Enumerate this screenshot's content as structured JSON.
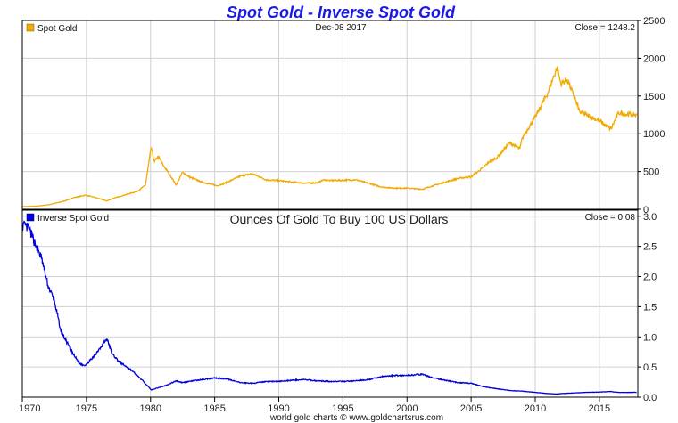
{
  "title": "Spot Gold - Inverse Spot Gold",
  "colors": {
    "title": "#1a1ae6",
    "gold": "#f2a900",
    "inverse": "#0000dd",
    "grid": "#d0d0d0",
    "frame": "#000000"
  },
  "x_ticks": [
    "1970",
    "1975",
    "1980",
    "1985",
    "1990",
    "1995",
    "2000",
    "2005",
    "2010",
    "2015"
  ],
  "footer": "world gold charts © www.goldchartsrus.com",
  "panels": {
    "top": {
      "legend": "Spot Gold",
      "date": "Dec-08  2017",
      "close": "Close = 1248.2",
      "y_ticks": [
        "0",
        "500",
        "1000",
        "1500",
        "2000",
        "2500"
      ]
    },
    "bottom": {
      "legend": "Inverse Spot Gold",
      "subtitle": "Ounces Of Gold To Buy 100 US Dollars",
      "close": "Close = 0.08",
      "y_ticks": [
        "0.0",
        "0.5",
        "1.0",
        "1.5",
        "2.0",
        "2.5",
        "3.0"
      ]
    }
  },
  "chart_data": [
    {
      "type": "line",
      "legend": "Spot Gold",
      "xlim": [
        1970,
        2018
      ],
      "ylim": [
        0,
        2500
      ],
      "grid": true,
      "legend_placement": "top-left",
      "series": [
        {
          "name": "Spot Gold",
          "x": [
            1970,
            1971,
            1972,
            1973,
            1973.5,
            1974,
            1974.9,
            1975.5,
            1976.6,
            1977,
            1978,
            1979,
            1979.6,
            1980.05,
            1980.3,
            1980.6,
            1981,
            1981.5,
            1982,
            1982.5,
            1983,
            1984,
            1985.2,
            1986,
            1987,
            1987.9,
            1988.5,
            1989,
            1990,
            1991,
            1992,
            1993,
            1993.5,
            1994,
            1995,
            1996,
            1997,
            1998,
            1999,
            2000,
            2001.2,
            2002,
            2003,
            2004,
            2005,
            2006,
            2006.4,
            2007,
            2008,
            2008.8,
            2009,
            2010,
            2011,
            2011.7,
            2012,
            2012.5,
            2013,
            2013.5,
            2014,
            2015,
            2015.9,
            2016.5,
            2017,
            2017.9
          ],
          "values": [
            36,
            40,
            58,
            97,
            120,
            154,
            186,
            165,
            110,
            140,
            190,
            240,
            320,
            820,
            630,
            700,
            580,
            460,
            320,
            490,
            430,
            360,
            310,
            360,
            440,
            470,
            430,
            390,
            380,
            360,
            345,
            350,
            390,
            380,
            385,
            390,
            345,
            295,
            280,
            280,
            265,
            310,
            360,
            410,
            430,
            560,
            630,
            680,
            880,
            800,
            950,
            1220,
            1550,
            1880,
            1660,
            1720,
            1500,
            1280,
            1250,
            1170,
            1060,
            1280,
            1260,
            1248
          ]
        }
      ]
    },
    {
      "type": "line",
      "legend": "Inverse Spot Gold",
      "subtitle": "Ounces Of Gold To Buy 100 US Dollars",
      "xlim": [
        1970,
        2018
      ],
      "ylim": [
        0,
        3.1
      ],
      "grid": true,
      "legend_placement": "top-left",
      "series": [
        {
          "name": "Inverse Spot Gold",
          "x": [
            1970,
            1970.5,
            1971,
            1971.5,
            1972,
            1972.5,
            1973,
            1973.5,
            1974,
            1974.5,
            1974.9,
            1975.5,
            1976,
            1976.6,
            1977,
            1977.5,
            1978,
            1978.5,
            1979,
            1979.5,
            1980.05,
            1980.5,
            1981,
            1981.5,
            1982,
            1982.5,
            1983,
            1984,
            1985,
            1986,
            1987,
            1988,
            1989,
            1990,
            1991,
            1992,
            1993,
            1994,
            1995,
            1996,
            1997,
            1998,
            1999,
            2000,
            2001.2,
            2002,
            2003,
            2004,
            2005,
            2006,
            2007,
            2008,
            2009,
            2010,
            2011,
            2011.7,
            2012,
            2013,
            2014,
            2015,
            2015.9,
            2016.5,
            2017,
            2017.9
          ],
          "values": [
            2.85,
            2.8,
            2.55,
            2.3,
            1.85,
            1.6,
            1.1,
            0.9,
            0.7,
            0.55,
            0.53,
            0.65,
            0.8,
            0.97,
            0.72,
            0.6,
            0.52,
            0.45,
            0.35,
            0.25,
            0.12,
            0.15,
            0.18,
            0.22,
            0.27,
            0.24,
            0.26,
            0.29,
            0.32,
            0.3,
            0.24,
            0.23,
            0.26,
            0.26,
            0.28,
            0.29,
            0.27,
            0.26,
            0.26,
            0.27,
            0.29,
            0.34,
            0.36,
            0.36,
            0.38,
            0.32,
            0.28,
            0.24,
            0.23,
            0.17,
            0.14,
            0.11,
            0.1,
            0.08,
            0.06,
            0.053,
            0.06,
            0.07,
            0.08,
            0.085,
            0.094,
            0.078,
            0.08,
            0.08
          ]
        }
      ]
    }
  ]
}
